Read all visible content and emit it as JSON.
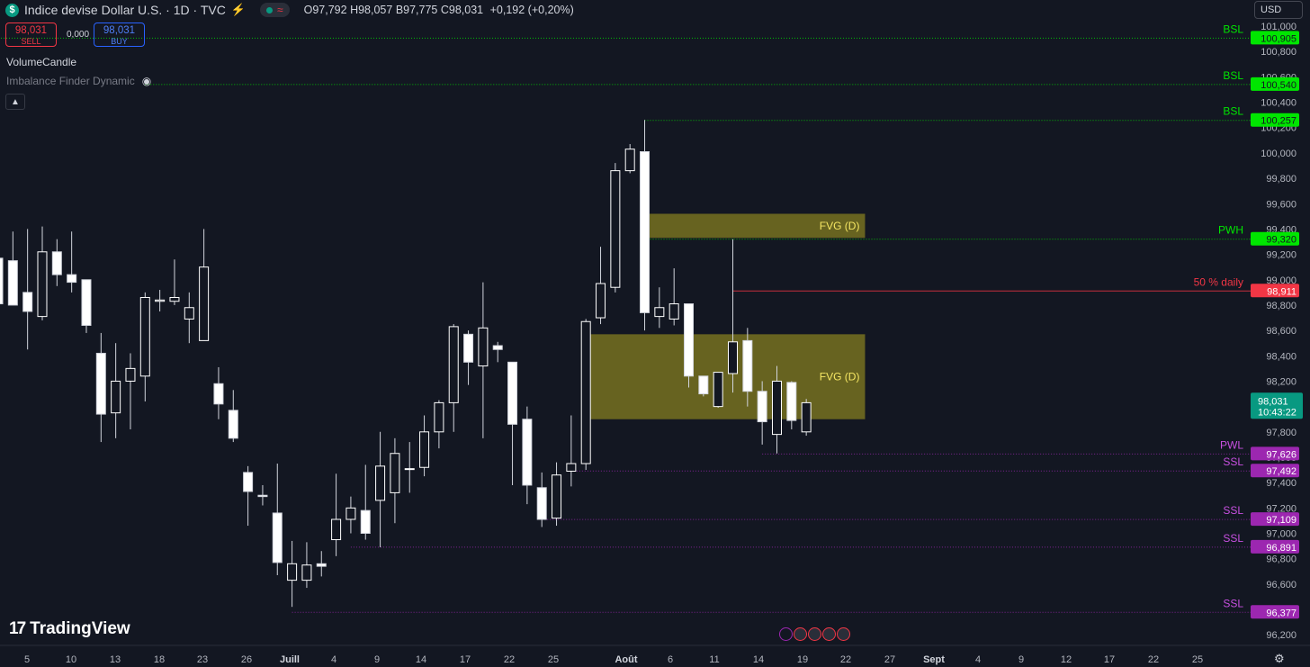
{
  "header": {
    "symbol_icon": "$",
    "title": "Indice devise Dollar U.S. · 1D · TVC",
    "ohlc": {
      "o_label": "O",
      "o": "97,792",
      "h_label": "H",
      "h": "98,057",
      "b_label": "B",
      "b": "97,775",
      "c_label": "C",
      "c": "98,031",
      "change": "+0,192 (+0,20%)"
    }
  },
  "trade": {
    "sell_price": "98,031",
    "sell_label": "SELL",
    "spread": "0,000",
    "buy_price": "98,031",
    "buy_label": "BUY"
  },
  "indicators": [
    "VolumeCandle",
    "Imbalance Finder Dynamic"
  ],
  "currency": "USD",
  "logo": {
    "text": "TradingView"
  },
  "icons": {
    "symbol": "dollar-icon",
    "bolt": "bolt-icon",
    "eye": "eye-hidden-icon",
    "collapse": "chevron-up-icon",
    "settings": "gear-icon",
    "flags": "us-flag-icon"
  },
  "colors": {
    "bg": "#131722",
    "candle": "#ffffff",
    "green": "#00e600",
    "purple": "#9c27b0",
    "red": "#f23645",
    "fvg": "#6b6518",
    "accent": "#089981"
  },
  "chart_data": {
    "type": "candlestick",
    "interval": "1D",
    "ylim": [
      96.18,
      101.05
    ],
    "y_ticks": [
      "96,200",
      "96,400",
      "96,600",
      "96,800",
      "97,000",
      "97,200",
      "97,400",
      "97,600",
      "97,800",
      "98,000",
      "98,200",
      "98,400",
      "98,600",
      "98,800",
      "99,000",
      "99,200",
      "99,400",
      "99,600",
      "99,800",
      "100,000",
      "100,200",
      "100,400",
      "100,600",
      "100,800",
      "101,000"
    ],
    "x_labels": [
      "5",
      "10",
      "13",
      "18",
      "23",
      "26",
      "Juill",
      "4",
      "9",
      "14",
      "17",
      "22",
      "25",
      "Août",
      "6",
      "11",
      "14",
      "19",
      "22",
      "27",
      "Sept",
      "4",
      "9",
      "12",
      "17",
      "22",
      "25"
    ],
    "candles": [
      {
        "o": 99.17,
        "h": 99.28,
        "l": 98.62,
        "c": 98.81
      },
      {
        "o": 99.15,
        "h": 99.38,
        "l": 98.8,
        "c": 98.8
      },
      {
        "o": 98.9,
        "h": 99.4,
        "l": 98.45,
        "c": 98.75
      },
      {
        "o": 98.71,
        "h": 99.42,
        "l": 98.68,
        "c": 99.22
      },
      {
        "o": 99.22,
        "h": 99.32,
        "l": 98.95,
        "c": 99.04
      },
      {
        "o": 99.04,
        "h": 99.38,
        "l": 98.9,
        "c": 98.98
      },
      {
        "o": 99.0,
        "h": 99.0,
        "l": 98.58,
        "c": 98.64
      },
      {
        "o": 98.42,
        "h": 98.58,
        "l": 97.72,
        "c": 97.94
      },
      {
        "o": 97.95,
        "h": 98.5,
        "l": 97.75,
        "c": 98.2
      },
      {
        "o": 98.2,
        "h": 98.42,
        "l": 97.82,
        "c": 98.3
      },
      {
        "o": 98.24,
        "h": 98.9,
        "l": 98.04,
        "c": 98.86
      },
      {
        "o": 98.83,
        "h": 98.92,
        "l": 98.75,
        "c": 98.84
      },
      {
        "o": 98.83,
        "h": 99.16,
        "l": 98.8,
        "c": 98.86
      },
      {
        "o": 98.69,
        "h": 98.9,
        "l": 98.5,
        "c": 98.78
      },
      {
        "o": 98.52,
        "h": 99.4,
        "l": 98.52,
        "c": 99.1
      },
      {
        "o": 98.18,
        "h": 98.31,
        "l": 97.9,
        "c": 98.02
      },
      {
        "o": 97.97,
        "h": 98.13,
        "l": 97.72,
        "c": 97.75
      },
      {
        "o": 97.48,
        "h": 97.53,
        "l": 97.06,
        "c": 97.33
      },
      {
        "o": 97.3,
        "h": 97.38,
        "l": 97.22,
        "c": 97.29
      },
      {
        "o": 97.16,
        "h": 97.55,
        "l": 96.67,
        "c": 96.77
      },
      {
        "o": 96.63,
        "h": 96.94,
        "l": 96.42,
        "c": 96.76
      },
      {
        "o": 96.63,
        "h": 96.93,
        "l": 96.57,
        "c": 96.75
      },
      {
        "o": 96.76,
        "h": 96.86,
        "l": 96.66,
        "c": 96.74
      },
      {
        "o": 96.95,
        "h": 97.47,
        "l": 96.82,
        "c": 97.11
      },
      {
        "o": 97.11,
        "h": 97.29,
        "l": 97.0,
        "c": 97.2
      },
      {
        "o": 97.18,
        "h": 97.54,
        "l": 96.95,
        "c": 97.0
      },
      {
        "o": 97.26,
        "h": 97.8,
        "l": 96.89,
        "c": 97.53
      },
      {
        "o": 97.32,
        "h": 97.75,
        "l": 97.08,
        "c": 97.63
      },
      {
        "o": 97.51,
        "h": 97.72,
        "l": 97.32,
        "c": 97.51
      },
      {
        "o": 97.52,
        "h": 97.93,
        "l": 97.45,
        "c": 97.8
      },
      {
        "o": 97.8,
        "h": 98.05,
        "l": 97.67,
        "c": 98.03
      },
      {
        "o": 98.03,
        "h": 98.65,
        "l": 97.8,
        "c": 98.63
      },
      {
        "o": 98.57,
        "h": 98.6,
        "l": 98.17,
        "c": 98.35
      },
      {
        "o": 98.32,
        "h": 98.98,
        "l": 97.75,
        "c": 98.62
      },
      {
        "o": 98.48,
        "h": 98.51,
        "l": 98.35,
        "c": 98.45
      },
      {
        "o": 98.35,
        "h": 98.35,
        "l": 97.38,
        "c": 97.86
      },
      {
        "o": 97.9,
        "h": 98.0,
        "l": 97.23,
        "c": 97.38
      },
      {
        "o": 97.36,
        "h": 97.48,
        "l": 97.05,
        "c": 97.11
      },
      {
        "o": 97.12,
        "h": 97.56,
        "l": 97.06,
        "c": 97.46
      },
      {
        "o": 97.49,
        "h": 97.93,
        "l": 97.37,
        "c": 97.55
      },
      {
        "o": 97.55,
        "h": 98.69,
        "l": 97.5,
        "c": 98.67
      },
      {
        "o": 98.7,
        "h": 99.26,
        "l": 98.65,
        "c": 98.97
      },
      {
        "o": 98.94,
        "h": 99.92,
        "l": 98.9,
        "c": 99.86
      },
      {
        "o": 99.86,
        "h": 100.07,
        "l": 99.84,
        "c": 100.03
      },
      {
        "o": 100.01,
        "h": 100.26,
        "l": 98.6,
        "c": 98.74
      },
      {
        "o": 98.71,
        "h": 98.94,
        "l": 98.62,
        "c": 98.78
      },
      {
        "o": 98.69,
        "h": 99.09,
        "l": 98.64,
        "c": 98.81
      },
      {
        "o": 98.81,
        "h": 98.81,
        "l": 98.15,
        "c": 98.24
      },
      {
        "o": 98.24,
        "h": 98.24,
        "l": 98.08,
        "c": 98.1
      },
      {
        "o": 98.0,
        "h": 98.26,
        "l": 97.99,
        "c": 98.27
      },
      {
        "o": 98.26,
        "h": 99.32,
        "l": 98.11,
        "c": 98.51
      },
      {
        "o": 98.52,
        "h": 98.62,
        "l": 98.0,
        "c": 98.12
      },
      {
        "o": 98.12,
        "h": 98.2,
        "l": 97.7,
        "c": 97.88
      },
      {
        "o": 97.78,
        "h": 98.32,
        "l": 97.63,
        "c": 98.2
      },
      {
        "o": 98.19,
        "h": 98.2,
        "l": 97.82,
        "c": 97.89
      },
      {
        "o": 97.8,
        "h": 98.06,
        "l": 97.77,
        "c": 98.03
      }
    ],
    "levels": [
      {
        "label": "BSL",
        "value": "100,905",
        "y": 100.905,
        "color": "#00e600",
        "start": 0,
        "end": 56
      },
      {
        "label": "BSL",
        "value": "100,540",
        "y": 100.54,
        "color": "#00e600",
        "start": 10,
        "end": 56
      },
      {
        "label": "BSL",
        "value": "100,257",
        "y": 100.257,
        "color": "#00e600",
        "start": 44,
        "end": 56
      },
      {
        "label": "PWH",
        "value": "99,320",
        "y": 99.32,
        "color": "#00e600",
        "start": 44,
        "end": 56
      },
      {
        "label": "50 % daily",
        "value": "98,911",
        "y": 98.911,
        "color": "#f23645",
        "start": 50,
        "end": 56
      },
      {
        "label": "PWL",
        "value": "97,626",
        "y": 97.626,
        "color": "#9c27b0",
        "start": 52,
        "end": 56
      },
      {
        "label": "SSL",
        "value": "97,492",
        "y": 97.492,
        "color": "#9c27b0",
        "start": 39,
        "end": 56
      },
      {
        "label": "SSL",
        "value": "97,109",
        "y": 97.109,
        "color": "#9c27b0",
        "start": 37,
        "end": 56
      },
      {
        "label": "SSL",
        "value": "96,891",
        "y": 96.891,
        "color": "#9c27b0",
        "start": 24,
        "end": 56
      },
      {
        "label": "SSL",
        "value": "96,377",
        "y": 96.377,
        "color": "#9c27b0",
        "start": 20,
        "end": 56
      }
    ],
    "zones": [
      {
        "label": "FVG (D)",
        "top": 99.52,
        "bottom": 99.33,
        "start": 44,
        "end": 59
      },
      {
        "label": "FVG (D)",
        "top": 98.57,
        "bottom": 97.9,
        "start": 40,
        "end": 59
      }
    ],
    "current": {
      "price": "98,031",
      "countdown": "10:43:22",
      "y": 98.031
    }
  }
}
